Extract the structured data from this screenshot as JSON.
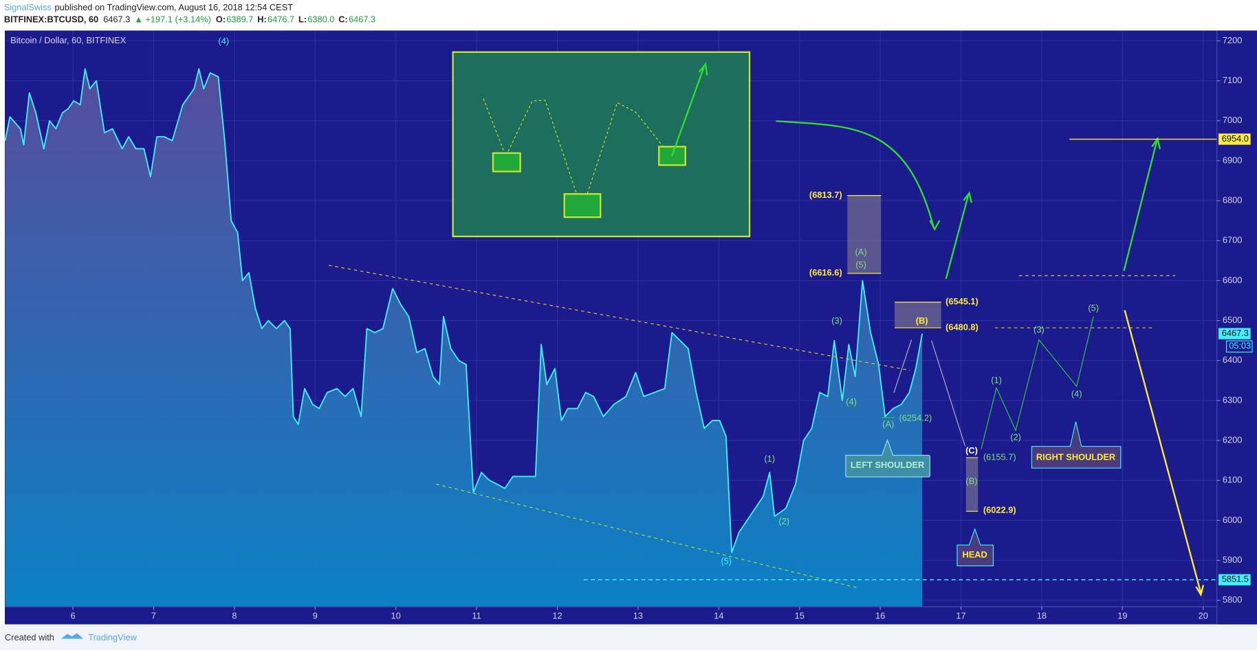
{
  "header": {
    "author": "SignalSwiss",
    "published": "published on TradingView.com, August 16, 2018 12:54 CEST",
    "symbol": "BITFINEX:BTCUSD, 60",
    "last": "6467.3",
    "change": "▲ +197.1 (+3.14%)",
    "ohlc": [
      {
        "label": "O:",
        "value": "6389.7"
      },
      {
        "label": "H:",
        "value": "6476.7"
      },
      {
        "label": "L:",
        "value": "6380.0"
      },
      {
        "label": "C:",
        "value": "6467.3"
      }
    ]
  },
  "footer": {
    "created": "Created with",
    "brand": "TradingView"
  },
  "chart_data": {
    "type": "area",
    "symbol_label": "Bitcoin / Dollar, 60, BITFINEX",
    "color": "#3ff0ff",
    "x": [
      5.16,
      5.22,
      5.35,
      5.39,
      5.46,
      5.54,
      5.64,
      5.71,
      5.79,
      5.87,
      5.94,
      6.01,
      6.09,
      6.15,
      6.21,
      6.29,
      6.39,
      6.49,
      6.61,
      6.69,
      6.78,
      6.88,
      6.96,
      7.04,
      7.13,
      7.23,
      7.36,
      7.43,
      7.5,
      7.56,
      7.62,
      7.7,
      7.8,
      7.88,
      7.96,
      8.04,
      8.1,
      8.18,
      8.26,
      8.34,
      8.42,
      8.52,
      8.62,
      8.69,
      8.73,
      8.79,
      8.87,
      8.97,
      9.05,
      9.15,
      9.27,
      9.37,
      9.47,
      9.57,
      9.64,
      9.74,
      9.84,
      9.96,
      10.06,
      10.16,
      10.26,
      10.36,
      10.46,
      10.54,
      10.59,
      10.68,
      10.78,
      10.87,
      10.96,
      11.06,
      11.16,
      11.26,
      11.35,
      11.45,
      11.6,
      11.73,
      11.8,
      11.87,
      11.97,
      12.05,
      12.13,
      12.25,
      12.35,
      12.45,
      12.57,
      12.7,
      12.85,
      12.97,
      13.07,
      13.2,
      13.33,
      13.42,
      13.52,
      13.62,
      13.72,
      13.82,
      13.92,
      14.01,
      14.09,
      14.16,
      14.25,
      14.35,
      14.45,
      14.55,
      14.63,
      14.69,
      14.83,
      14.95,
      15.05,
      15.15,
      15.25,
      15.35,
      15.43,
      15.53,
      15.61,
      15.69,
      15.78,
      15.88,
      15.98,
      16.06,
      16.16,
      16.26,
      16.36,
      16.44,
      16.52
    ],
    "values": [
      6950,
      7010,
      6980,
      6940,
      7070,
      7020,
      6930,
      7000,
      6980,
      7020,
      7030,
      7050,
      7040,
      7130,
      7080,
      7100,
      6970,
      6980,
      6930,
      6960,
      6930,
      6930,
      6860,
      6960,
      6960,
      6950,
      7040,
      7060,
      7080,
      7130,
      7080,
      7120,
      7110,
      6950,
      6750,
      6720,
      6600,
      6620,
      6530,
      6480,
      6500,
      6480,
      6500,
      6480,
      6260,
      6240,
      6330,
      6290,
      6280,
      6320,
      6330,
      6310,
      6330,
      6260,
      6480,
      6470,
      6480,
      6580,
      6540,
      6510,
      6420,
      6430,
      6360,
      6340,
      6510,
      6430,
      6400,
      6390,
      6070,
      6120,
      6100,
      6090,
      6080,
      6110,
      6110,
      6110,
      6440,
      6340,
      6380,
      6250,
      6280,
      6280,
      6320,
      6310,
      6260,
      6290,
      6310,
      6370,
      6310,
      6320,
      6330,
      6470,
      6450,
      6430,
      6320,
      6230,
      6250,
      6250,
      6210,
      5920,
      5970,
      6000,
      6030,
      6060,
      6120,
      6010,
      6030,
      6090,
      6200,
      6230,
      6320,
      6310,
      6450,
      6300,
      6440,
      6360,
      6600,
      6470,
      6390,
      6260,
      6280,
      6290,
      6320,
      6380,
      6467.3
    ],
    "xlim": [
      5.156,
      20.17
    ],
    "ylim": [
      5784,
      7226
    ],
    "xticks": [
      6,
      7,
      8,
      9,
      10,
      11,
      12,
      13,
      14,
      15,
      16,
      17,
      18,
      19,
      20
    ],
    "yticks": [
      5800,
      5900,
      6000,
      6100,
      6200,
      6300,
      6400,
      6500,
      6600,
      6700,
      6800,
      6900,
      7000,
      7100,
      7200
    ],
    "grid": true,
    "price_tags": [
      {
        "value": 6954.0,
        "label": "6954.0",
        "color": "#ffeb3b"
      },
      {
        "value": 6467.3,
        "label": "6467.3",
        "color": "#3ff0ff"
      },
      {
        "value": 5851.5,
        "label": "5851.5",
        "color": "#3ff0ff"
      }
    ],
    "countdown": "05:03",
    "annotations": [
      "(4)",
      "(6813.7)",
      "(A)",
      "(5)",
      "(6616.6)",
      "(6545.1)",
      "(B)",
      "(6480.8)",
      "(3)",
      "(4)",
      "(A)",
      "(6254.2)",
      "(1)",
      "(2)",
      "(5)",
      "(C)",
      "(6155.7)",
      "(B)",
      "(6022.9)",
      "(1)",
      "(2)",
      "(3)",
      "(4)",
      "(5)"
    ],
    "callouts": [
      "LEFT SHOULDER",
      "HEAD",
      "RIGHT SHOULDER"
    ]
  }
}
